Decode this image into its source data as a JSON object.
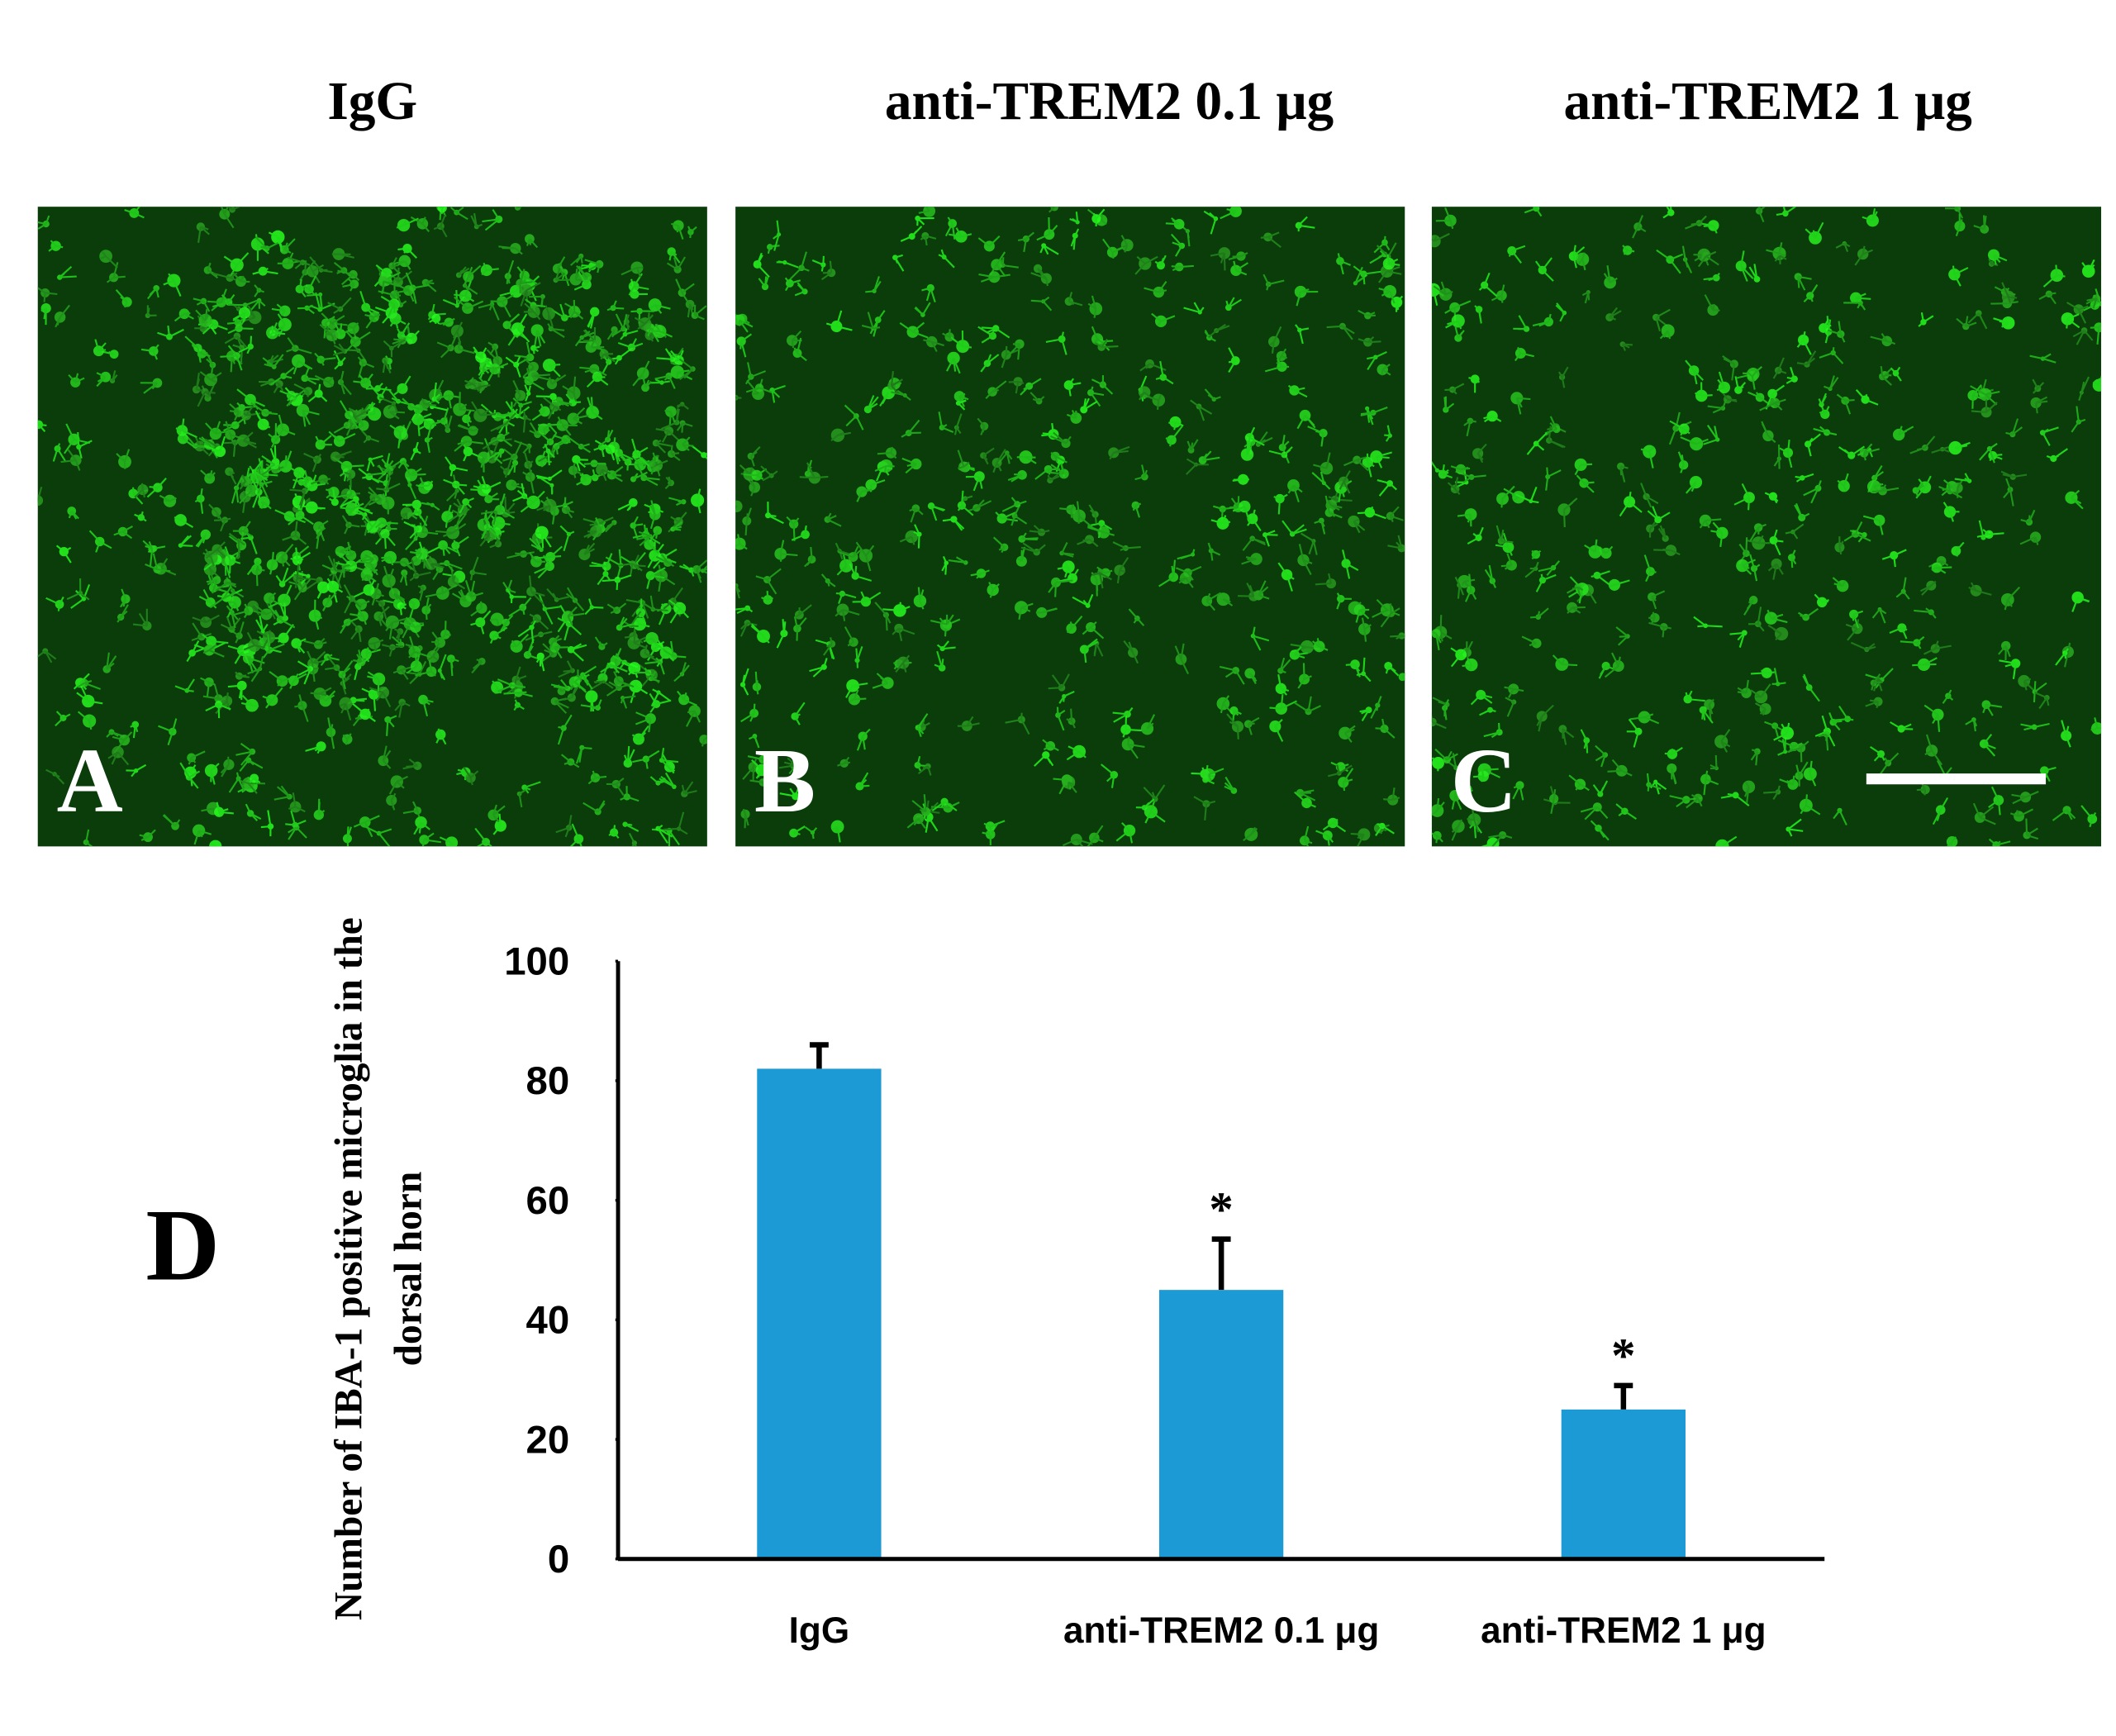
{
  "panels": [
    {
      "title": "IgG",
      "letter": "A"
    },
    {
      "title": "anti-TREM2 0.1 μg",
      "letter": "B"
    },
    {
      "title": "anti-TREM2 1 μg",
      "letter": "C"
    }
  ],
  "chart_data": {
    "type": "bar",
    "panel_letter": "D",
    "ylabel": "Number of IBA-1 positive microglia in the dorsal horn",
    "categories": [
      "IgG",
      "anti-TREM2 0.1 μg",
      "anti-TREM2 1 μg"
    ],
    "values": [
      82,
      45,
      25
    ],
    "errors": [
      4,
      8.5,
      4
    ],
    "significance": [
      null,
      "*",
      "*"
    ],
    "color": "#1b9ad6",
    "ylim": [
      0,
      100
    ],
    "yticks": [
      0,
      20,
      40,
      60,
      80,
      100
    ]
  }
}
